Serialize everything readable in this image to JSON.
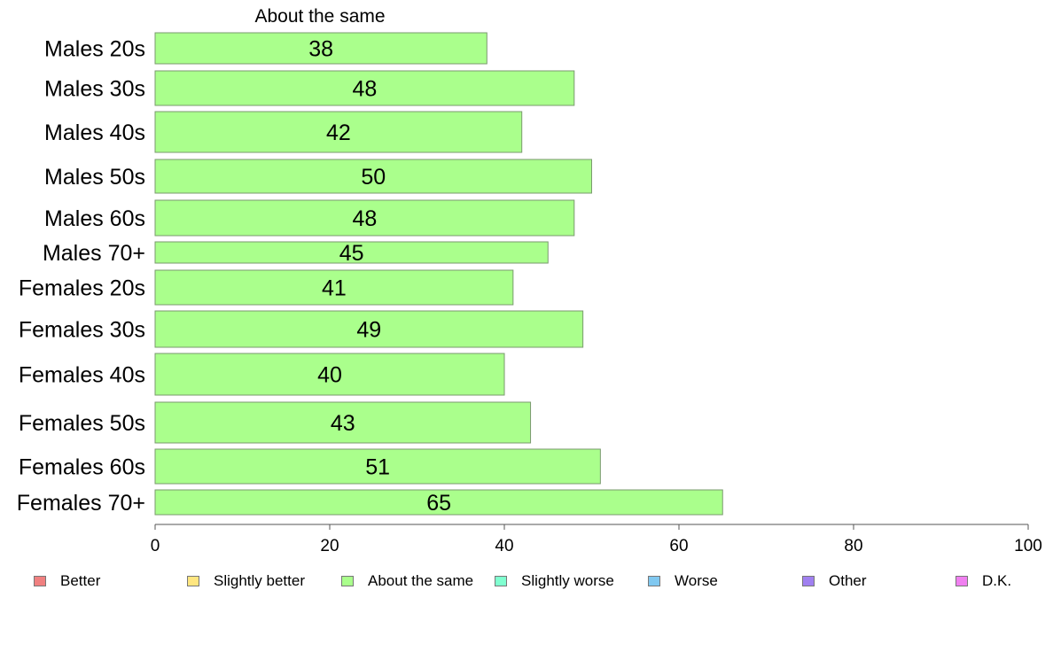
{
  "chart_data": {
    "type": "bar",
    "orientation": "horizontal",
    "series_title": "About the same",
    "categories": [
      "Males 20s",
      "Males 30s",
      "Males 40s",
      "Males 50s",
      "Males 60s",
      "Males 70+",
      "Females 20s",
      "Females 30s",
      "Females 40s",
      "Females 50s",
      "Females 60s",
      "Females 70+"
    ],
    "series": [
      {
        "name": "About the same",
        "color": "#aaff8c",
        "values": [
          38,
          48,
          42,
          50,
          48,
          45,
          41,
          49,
          40,
          43,
          51,
          65
        ]
      }
    ],
    "xlim": [
      0,
      100
    ],
    "xticks": [
      0,
      20,
      40,
      60,
      80,
      100
    ],
    "grid": false,
    "legend": {
      "placement": "bottom",
      "items": [
        {
          "label": "Better",
          "color": "#f08080"
        },
        {
          "label": "Slightly better",
          "color": "#ffe680"
        },
        {
          "label": "About the same",
          "color": "#aaff8c"
        },
        {
          "label": "Slightly worse",
          "color": "#80ffd0"
        },
        {
          "label": "Worse",
          "color": "#80c8f0"
        },
        {
          "label": "Other",
          "color": "#a080f0"
        },
        {
          "label": "D.K.",
          "color": "#f080f0"
        }
      ]
    }
  }
}
